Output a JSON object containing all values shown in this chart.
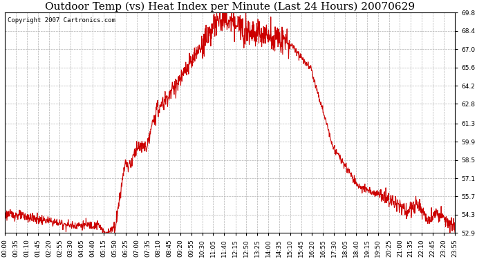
{
  "title": "Outdoor Temp (vs) Heat Index per Minute (Last 24 Hours) 20070629",
  "copyright_text": "Copyright 2007 Cartronics.com",
  "line_color": "#cc0000",
  "background_color": "#ffffff",
  "grid_color": "#b0b0b0",
  "ylim": [
    52.9,
    69.8
  ],
  "yticks": [
    52.9,
    54.3,
    55.7,
    57.1,
    58.5,
    59.9,
    61.3,
    62.8,
    64.2,
    65.6,
    67.0,
    68.4,
    69.8
  ],
  "xtick_labels": [
    "00:00",
    "00:35",
    "01:10",
    "01:45",
    "02:20",
    "02:55",
    "03:30",
    "04:05",
    "04:40",
    "05:15",
    "05:50",
    "06:25",
    "07:00",
    "07:35",
    "08:10",
    "08:45",
    "09:20",
    "09:55",
    "10:30",
    "11:05",
    "11:40",
    "12:15",
    "12:50",
    "13:25",
    "14:00",
    "14:35",
    "15:10",
    "15:45",
    "16:20",
    "16:55",
    "17:30",
    "18:05",
    "18:40",
    "19:15",
    "19:50",
    "20:25",
    "21:00",
    "21:35",
    "22:10",
    "22:45",
    "23:20",
    "23:55"
  ],
  "title_fontsize": 11,
  "tick_fontsize": 6.5,
  "copyright_fontsize": 6.5,
  "line_width": 0.8
}
